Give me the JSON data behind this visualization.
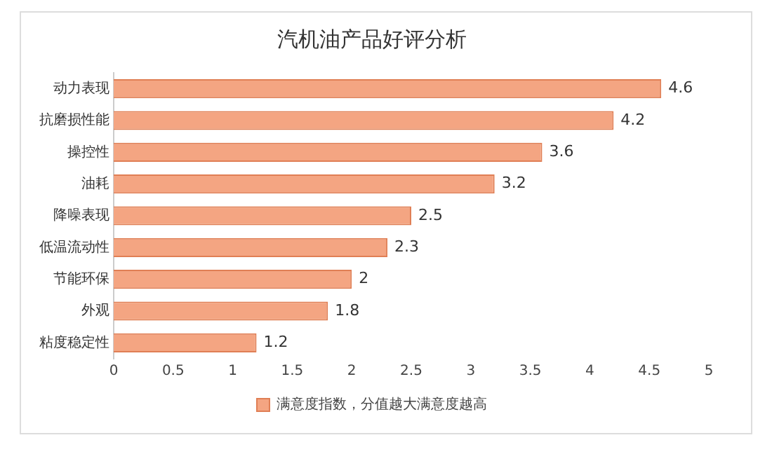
{
  "chart_data": {
    "type": "bar",
    "orientation": "horizontal",
    "title": "汽机油产品好评分析",
    "categories": [
      "动力表现",
      "抗磨损性能",
      "操控性",
      "油耗",
      "降噪表现",
      "低温流动性",
      "节能环保",
      "外观",
      "粘度稳定性"
    ],
    "series": [
      {
        "name": "满意度指数，分值越大满意度越高",
        "color": "#f4a582",
        "values": [
          4.6,
          4.2,
          3.6,
          3.2,
          2.5,
          2.3,
          2,
          1.8,
          1.2
        ]
      }
    ],
    "xlim": [
      0,
      5
    ],
    "xticks": [
      0,
      0.5,
      1,
      1.5,
      2,
      2.5,
      3,
      3.5,
      4,
      4.5,
      5
    ],
    "grid": false,
    "legend": "bottom",
    "data_labels": true
  }
}
